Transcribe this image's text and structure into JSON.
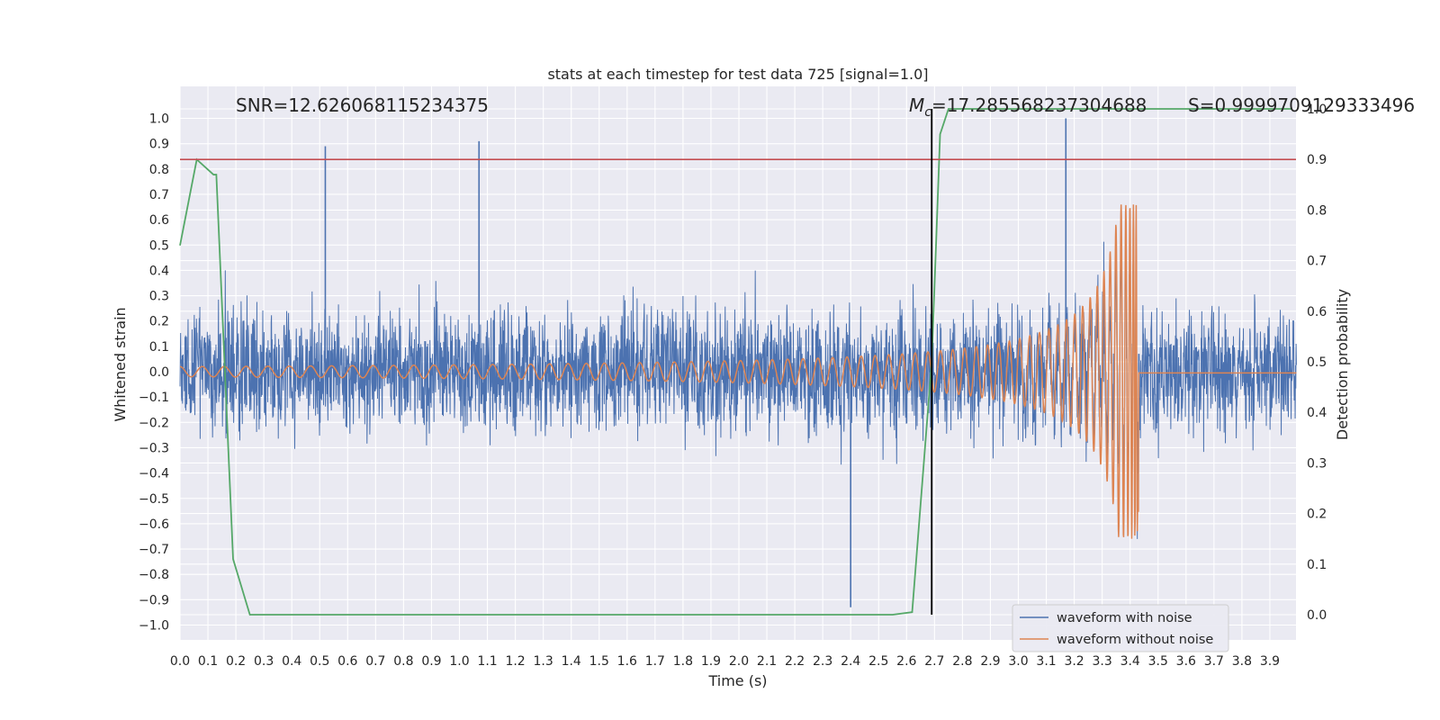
{
  "chart_data": {
    "type": "line",
    "title": "stats at each timestep for test data 725 [signal=1.0]",
    "xlabel": "Time (s)",
    "ylabel_left": "Whitened strain",
    "ylabel_right": "Detection probability",
    "xlim": [
      0.0,
      4.0
    ],
    "ylim_left": [
      -1.03,
      1.1
    ],
    "ylim_right": [
      -0.045,
      1.045
    ],
    "grid": true,
    "legend_placement": "lower-right",
    "x_ticks": [
      "0.0",
      "0.1",
      "0.2",
      "0.3",
      "0.4",
      "0.5",
      "0.6",
      "0.7",
      "0.8",
      "0.9",
      "1.0",
      "1.1",
      "1.2",
      "1.3",
      "1.4",
      "1.5",
      "1.6",
      "1.7",
      "1.8",
      "1.9",
      "2.0",
      "2.1",
      "2.2",
      "2.3",
      "2.4",
      "2.5",
      "2.6",
      "2.7",
      "2.8",
      "2.9",
      "3.0",
      "3.1",
      "3.2",
      "3.3",
      "3.4",
      "3.5",
      "3.6",
      "3.7",
      "3.8",
      "3.9"
    ],
    "y_ticks_left": [
      "1.0",
      "0.9",
      "0.8",
      "0.7",
      "0.6",
      "0.5",
      "0.4",
      "0.3",
      "0.2",
      "0.1",
      "0.0",
      "−0.1",
      "−0.2",
      "−0.3",
      "−0.4",
      "−0.5",
      "−0.6",
      "−0.7",
      "−0.8",
      "−0.9",
      "−1.0"
    ],
    "y_ticks_right": [
      "1.0",
      "0.9",
      "0.8",
      "0.7",
      "0.6",
      "0.5",
      "0.4",
      "0.3",
      "0.2",
      "0.1",
      "0.0"
    ],
    "annotations": {
      "snr": "SNR=12.626068115234375",
      "mc": "=17.285568237304688",
      "mc_symbol": "M",
      "mc_subscript": "c",
      "s": "S=0.9999709129333496"
    },
    "threshold_right": 0.9,
    "event_time": 2.69,
    "series": [
      {
        "name": "waveform with noise",
        "axis": "left",
        "color": "#4c72b0",
        "noise_amplitude": 0.2,
        "peaks_x": [
          0.52,
          1.07,
          2.4,
          3.17
        ],
        "peaks_y": [
          0.89,
          0.91,
          -0.93,
          1.0
        ]
      },
      {
        "name": "waveform without noise",
        "axis": "left",
        "color": "#dd8452",
        "chirp_start_amplitude": 0.02,
        "chirp_peak_amplitude": 0.66,
        "merger_time": 3.43,
        "ringdown_level": -0.005
      },
      {
        "name": "detection probability",
        "axis": "right",
        "color": "#55a868",
        "x": [
          0.0,
          0.06,
          0.12,
          0.13,
          0.19,
          0.25,
          2.55,
          2.62,
          2.69,
          2.72,
          2.75,
          3.98
        ],
        "y": [
          0.73,
          0.9,
          0.87,
          0.87,
          0.11,
          0.0,
          0.0,
          0.005,
          0.5,
          0.95,
          1.0,
          1.0
        ]
      }
    ],
    "threshold_color": "#c44e52"
  }
}
